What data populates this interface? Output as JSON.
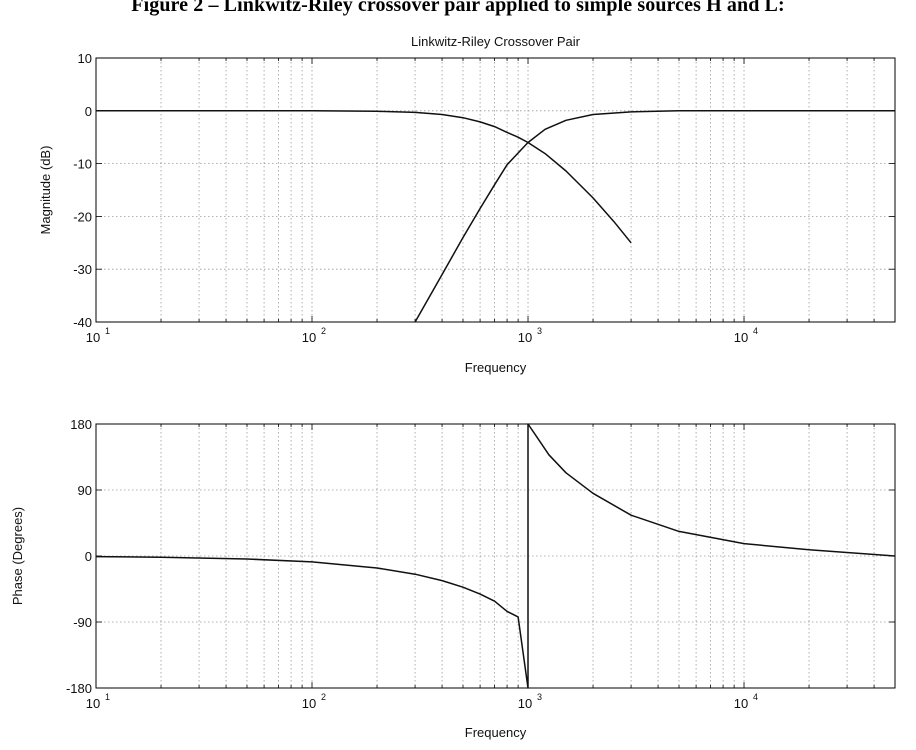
{
  "figure_title": "Figure 2 – Linkwitz-Riley crossover pair applied to simple sources H and L:",
  "chart_data": [
    {
      "type": "line",
      "title": "Linkwitz-Riley Crossover Pair",
      "xlabel": "Frequency",
      "ylabel": "Magnitude (dB)",
      "x_scale": "log",
      "xlim": [
        10,
        50000
      ],
      "ylim": [
        -40,
        10
      ],
      "yticks": [
        -40,
        -30,
        -20,
        -10,
        0,
        10
      ],
      "xticks": [
        {
          "base": "10",
          "exp": "1"
        },
        {
          "base": "10",
          "exp": "2"
        },
        {
          "base": "10",
          "exp": "3"
        },
        {
          "base": "10",
          "exp": "4"
        }
      ],
      "grid": true,
      "series": [
        {
          "x": [
            10,
            100,
            200,
            300,
            400,
            500,
            600,
            700,
            800,
            900,
            1000,
            1200,
            1500,
            2000,
            2500,
            3000
          ],
          "y": [
            0,
            0,
            -0.1,
            -0.3,
            -0.7,
            -1.3,
            -2.1,
            -3.0,
            -4.1,
            -5.0,
            -6.0,
            -8.1,
            -11.4,
            -16.5,
            -21.0,
            -25.0
          ]
        },
        {
          "x": [
            300,
            400,
            500,
            600,
            700,
            800,
            900,
            1000,
            1200,
            1500,
            2000,
            3000,
            5000,
            10000,
            50000
          ],
          "y": [
            -40,
            -31.0,
            -24.0,
            -18.5,
            -14.0,
            -10.2,
            -8.0,
            -6.0,
            -3.5,
            -1.8,
            -0.7,
            -0.2,
            0,
            0,
            0
          ]
        }
      ]
    },
    {
      "type": "line",
      "title": "",
      "xlabel": "Frequency",
      "ylabel": "Phase (Degrees)",
      "x_scale": "log",
      "xlim": [
        10,
        50000
      ],
      "ylim": [
        -180,
        180
      ],
      "yticks": [
        -180,
        -90,
        0,
        90,
        180
      ],
      "xticks": [
        {
          "base": "10",
          "exp": "1"
        },
        {
          "base": "10",
          "exp": "2"
        },
        {
          "base": "10",
          "exp": "3"
        },
        {
          "base": "10",
          "exp": "4"
        }
      ],
      "grid": true,
      "series": [
        {
          "x": [
            10,
            20,
            50,
            100,
            200,
            300,
            400,
            500,
            600,
            700,
            800,
            900,
            1000,
            1000,
            1100,
            1250,
            1500,
            2000,
            3000,
            5000,
            10000,
            20000,
            50000
          ],
          "y": [
            -0.8,
            -1.6,
            -4.1,
            -8.1,
            -16.3,
            -24.8,
            -33.6,
            -42.6,
            -52.0,
            -61.6,
            -75.6,
            -83.0,
            -180,
            180,
            162.0,
            138.0,
            113.5,
            85.5,
            55.6,
            33.6,
            16.9,
            8.5,
            0
          ]
        }
      ]
    }
  ]
}
